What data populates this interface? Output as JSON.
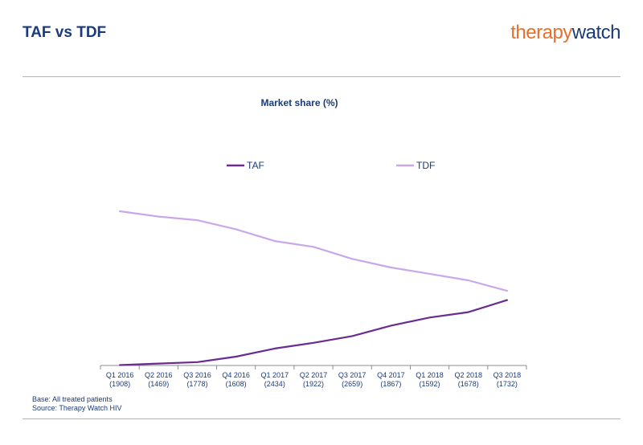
{
  "header": {
    "title": "TAF vs TDF",
    "brand_part1": "therapy",
    "brand_part2": "watch"
  },
  "footer": {
    "base": "Base: All treated patients",
    "source": "Source: Therapy Watch HIV"
  },
  "chart_data": {
    "type": "line",
    "title": "Market share (%)",
    "categories": [
      [
        "Q1 2016",
        "(1908)"
      ],
      [
        "Q2 2016",
        "(1469)"
      ],
      [
        "Q3 2016",
        "(1778)"
      ],
      [
        "Q4 2016",
        "(1608)"
      ],
      [
        "Q1 2017",
        "(2434)"
      ],
      [
        "Q2 2017",
        "(1922)"
      ],
      [
        "Q3 2017",
        "(2659)"
      ],
      [
        "Q4 2017",
        "(1867)"
      ],
      [
        "Q1 2018",
        "(1592)"
      ],
      [
        "Q2 2018",
        "(1678)"
      ],
      [
        "Q3 2018",
        "(1732)"
      ]
    ],
    "series": [
      {
        "name": "TAF",
        "color": "#6a2c91",
        "values": [
          0.3,
          1.4,
          2.5,
          6.5,
          12.5,
          16.7,
          21.7,
          29.4,
          35.4,
          39.4,
          48.3
        ]
      },
      {
        "name": "TDF",
        "color": "#c9a8e8",
        "values": [
          113.9,
          110.0,
          107.3,
          100.6,
          91.9,
          87.6,
          78.7,
          72.4,
          67.7,
          62.9,
          55.1
        ]
      }
    ],
    "ylim": [
      0,
      175
    ],
    "xlabel": "",
    "ylabel": "",
    "grid": false,
    "legend": "top"
  }
}
